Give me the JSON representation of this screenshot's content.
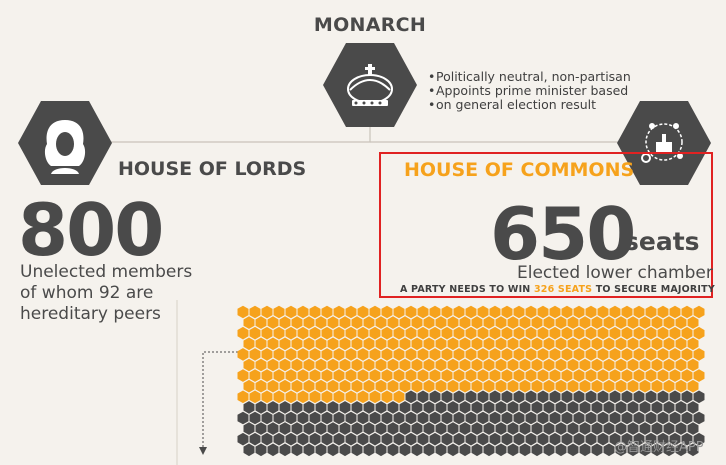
{
  "monarch": {
    "title": "MONARCH",
    "bullets": [
      "Politically neutral, non-partisan",
      "Appoints prime minister based",
      "on general election result"
    ],
    "icon": "crown-icon"
  },
  "lords": {
    "title": "HOUSE OF LORDS",
    "number": "800",
    "desc_lines": [
      "Unelected members",
      "of whom  92 are",
      "hereditary peers"
    ],
    "icon": "judge-wig-icon"
  },
  "commons": {
    "title": "HOUSE OF COMMONS",
    "number": "650",
    "unit": "seats",
    "desc": "Elected lower chamber",
    "majority_prefix": "A PARTY NEEDS TO WIN ",
    "majority_highlight": "326 SEATS",
    "majority_suffix": " TO SECURE MAJORITY",
    "icon": "parliament-building-icon"
  },
  "seats": {
    "orange": 326,
    "grey": 324
  },
  "watermark": "@智通财经APP",
  "colors": {
    "orange": "#f6a21c",
    "grey": "#4a4a4a",
    "background": "#f5f2ed",
    "highlight_box": "#e02222"
  }
}
